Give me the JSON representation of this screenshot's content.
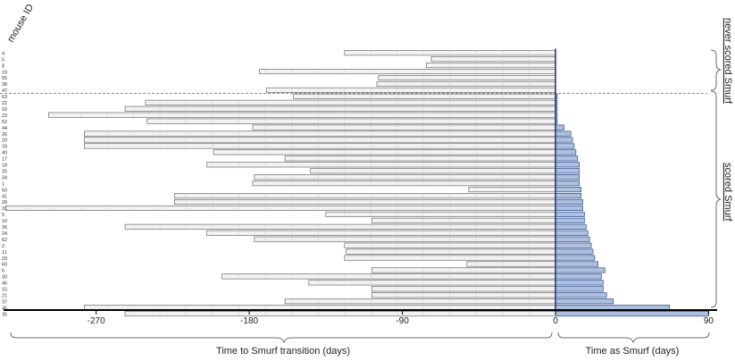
{
  "chart_data": {
    "type": "bar",
    "title": "",
    "ylabel": "mouse ID",
    "xlabel_left": "Time to Smurf transition (days)",
    "xlabel_right": "Time as Smurf (days)",
    "xlim": [
      -330,
      90
    ],
    "xticks": [
      -270,
      -180,
      -90,
      0,
      90
    ],
    "group_labels": [
      "never scored Smurf",
      "scored Smurf"
    ],
    "colors": {
      "pre": "#f2f2f2",
      "smurf": "#adc0e0",
      "smurf_edge": "#2c4a8a",
      "edge": "#555555"
    },
    "groups": [
      {
        "name": "never scored Smurf",
        "rows": [
          {
            "id": "4",
            "before": -124,
            "after": 0
          },
          {
            "id": "5",
            "before": -73,
            "after": 0
          },
          {
            "id": "8",
            "before": -76,
            "after": 0
          },
          {
            "id": "19",
            "before": -174,
            "after": 0
          },
          {
            "id": "55",
            "before": -104,
            "after": 0
          },
          {
            "id": "38",
            "before": -105,
            "after": 0
          },
          {
            "id": "47",
            "before": -170,
            "after": 0
          }
        ]
      },
      {
        "name": "scored Smurf",
        "rows": [
          {
            "id": "63",
            "before": -154,
            "after": 1
          },
          {
            "id": "22",
            "before": -241,
            "after": 1
          },
          {
            "id": "16",
            "before": -253,
            "after": 1
          },
          {
            "id": "23",
            "before": -298,
            "after": 1
          },
          {
            "id": "52",
            "before": -240,
            "after": 1
          },
          {
            "id": "44",
            "before": -178,
            "after": 5
          },
          {
            "id": "26",
            "before": -277,
            "after": 9
          },
          {
            "id": "20",
            "before": -277,
            "after": 10
          },
          {
            "id": "33",
            "before": -277,
            "after": 11
          },
          {
            "id": "40",
            "before": -201,
            "after": 12
          },
          {
            "id": "17",
            "before": -159,
            "after": 13
          },
          {
            "id": "18",
            "before": -205,
            "after": 14
          },
          {
            "id": "25",
            "before": -144,
            "after": 14
          },
          {
            "id": "34",
            "before": -177,
            "after": 14
          },
          {
            "id": "1",
            "before": -178,
            "after": 14
          },
          {
            "id": "50",
            "before": -51,
            "after": 15
          },
          {
            "id": "41",
            "before": -224,
            "after": 15
          },
          {
            "id": "28",
            "before": -224,
            "after": 16
          },
          {
            "id": "31",
            "before": -323,
            "after": 16
          },
          {
            "id": "5",
            "before": -135,
            "after": 17
          },
          {
            "id": "10",
            "before": -108,
            "after": 17
          },
          {
            "id": "36",
            "before": -253,
            "after": 18
          },
          {
            "id": "24",
            "before": -205,
            "after": 19
          },
          {
            "id": "62",
            "before": -177,
            "after": 20
          },
          {
            "id": "2",
            "before": -124,
            "after": 21
          },
          {
            "id": "11",
            "before": -123,
            "after": 22
          },
          {
            "id": "29",
            "before": -124,
            "after": 23
          },
          {
            "id": "60",
            "before": -52,
            "after": 25
          },
          {
            "id": "6",
            "before": -108,
            "after": 29
          },
          {
            "id": "30",
            "before": -196,
            "after": 27
          },
          {
            "id": "46",
            "before": -145,
            "after": 28
          },
          {
            "id": "15",
            "before": -108,
            "after": 28
          },
          {
            "id": "21",
            "before": -108,
            "after": 30
          },
          {
            "id": "37",
            "before": -159,
            "after": 34
          },
          {
            "id": "45",
            "before": -277,
            "after": 67
          },
          {
            "id": "35",
            "before": -253,
            "after": 90
          }
        ]
      }
    ]
  }
}
